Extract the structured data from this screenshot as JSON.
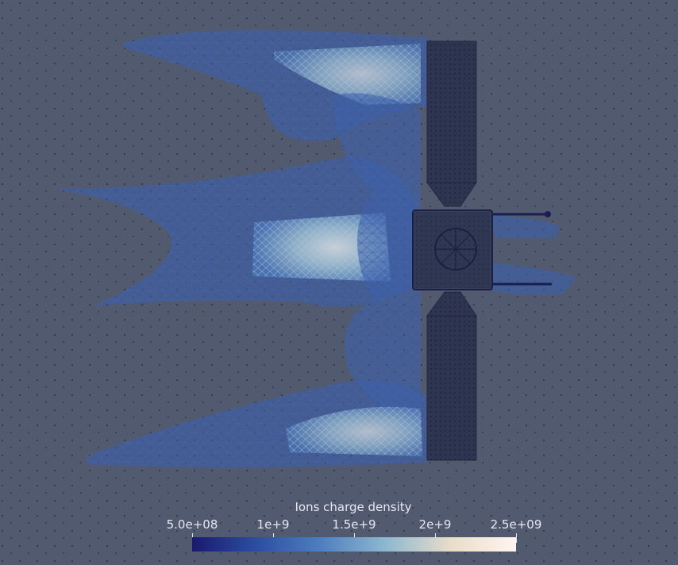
{
  "view": {
    "background": "#525a70",
    "object_description_icon": "satellite-wireframe-icon"
  },
  "legend": {
    "title": "Ions charge density",
    "ticks": [
      {
        "label": "5.0e+08",
        "value": 500000000
      },
      {
        "label": "1e+9",
        "value": 1000000000
      },
      {
        "label": "1.5e+9",
        "value": 1500000000
      },
      {
        "label": "2e+9",
        "value": 2000000000
      },
      {
        "label": "2.5e+09",
        "value": 2500000000
      }
    ],
    "range": [
      500000000,
      2500000000
    ],
    "colormap": [
      "#1a1a6e",
      "#2c4fa0",
      "#4f80bf",
      "#8fb8cf",
      "#e9ddc9",
      "#fff5ef"
    ]
  }
}
